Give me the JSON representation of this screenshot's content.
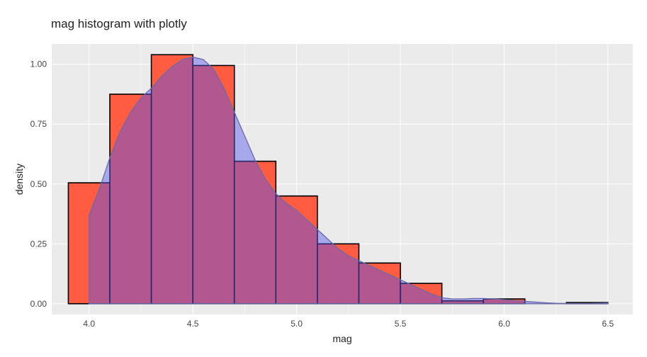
{
  "chart_data": {
    "type": "bar",
    "title": "mag histogram with plotly",
    "xlabel": "mag",
    "ylabel": "density",
    "xlim": [
      3.82,
      6.62
    ],
    "ylim": [
      -0.045,
      1.085
    ],
    "x_ticks": [
      "4.0",
      "4.5",
      "5.0",
      "5.5",
      "6.0",
      "6.5"
    ],
    "y_ticks": [
      "0.00",
      "0.25",
      "0.50",
      "0.75",
      "1.00"
    ],
    "grid": true,
    "histogram": {
      "bins": [
        {
          "x0": 3.9,
          "x1": 4.1,
          "value": 0.505
        },
        {
          "x0": 4.1,
          "x1": 4.3,
          "value": 0.875
        },
        {
          "x0": 4.3,
          "x1": 4.5,
          "value": 1.04
        },
        {
          "x0": 4.5,
          "x1": 4.7,
          "value": 0.995
        },
        {
          "x0": 4.7,
          "x1": 4.9,
          "value": 0.595
        },
        {
          "x0": 4.9,
          "x1": 5.1,
          "value": 0.45
        },
        {
          "x0": 5.1,
          "x1": 5.3,
          "value": 0.25
        },
        {
          "x0": 5.3,
          "x1": 5.5,
          "value": 0.17
        },
        {
          "x0": 5.5,
          "x1": 5.7,
          "value": 0.085
        },
        {
          "x0": 5.7,
          "x1": 5.9,
          "value": 0.012
        },
        {
          "x0": 5.9,
          "x1": 6.1,
          "value": 0.02
        },
        {
          "x0": 6.1,
          "x1": 6.3,
          "value": 0.0
        },
        {
          "x0": 6.3,
          "x1": 6.5,
          "value": 0.005
        }
      ],
      "fill_color": "#ff5c42",
      "line_color": "#000000"
    },
    "density": {
      "x": [
        4.0,
        4.05,
        4.1,
        4.15,
        4.2,
        4.25,
        4.3,
        4.35,
        4.4,
        4.45,
        4.5,
        4.55,
        4.6,
        4.65,
        4.7,
        4.75,
        4.8,
        4.85,
        4.9,
        4.95,
        5.0,
        5.05,
        5.1,
        5.15,
        5.2,
        5.25,
        5.3,
        5.35,
        5.4,
        5.45,
        5.5,
        5.55,
        5.6,
        5.65,
        5.7,
        5.75,
        5.8,
        5.85,
        5.9,
        5.95,
        6.0,
        6.05,
        6.1,
        6.15,
        6.2,
        6.25,
        6.3,
        6.35,
        6.4,
        6.45,
        6.5
      ],
      "y": [
        0.37,
        0.48,
        0.61,
        0.72,
        0.8,
        0.86,
        0.9,
        0.95,
        0.99,
        1.02,
        1.03,
        1.02,
        0.98,
        0.9,
        0.8,
        0.7,
        0.6,
        0.52,
        0.46,
        0.42,
        0.39,
        0.35,
        0.31,
        0.27,
        0.23,
        0.2,
        0.18,
        0.16,
        0.14,
        0.12,
        0.1,
        0.08,
        0.06,
        0.04,
        0.025,
        0.02,
        0.02,
        0.022,
        0.022,
        0.02,
        0.017,
        0.013,
        0.01,
        0.007,
        0.004,
        0.002,
        0.001,
        0.001,
        0.001,
        0.002,
        0.003
      ],
      "fill_color": "#5555ee",
      "fill_opacity": 0.45,
      "line_color": "#6a6aa8"
    },
    "colors": {
      "panel_background": "#ebebeb",
      "grid": "#ffffff"
    }
  }
}
